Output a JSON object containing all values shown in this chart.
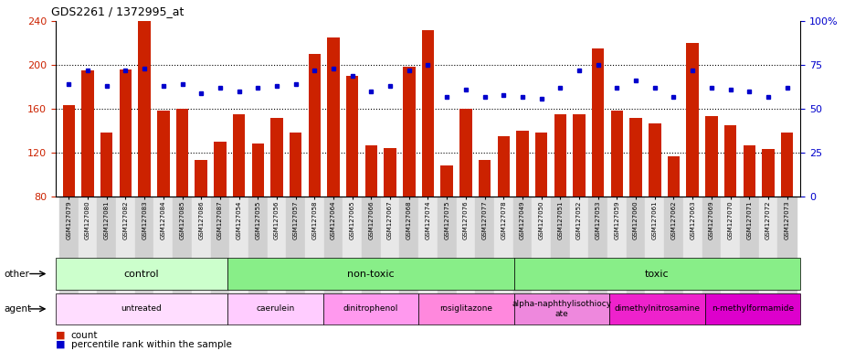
{
  "title": "GDS2261 / 1372995_at",
  "samples": [
    "GSM127079",
    "GSM127080",
    "GSM127081",
    "GSM127082",
    "GSM127083",
    "GSM127084",
    "GSM127085",
    "GSM127086",
    "GSM127087",
    "GSM127054",
    "GSM127055",
    "GSM127056",
    "GSM127057",
    "GSM127058",
    "GSM127064",
    "GSM127065",
    "GSM127066",
    "GSM127067",
    "GSM127068",
    "GSM127074",
    "GSM127075",
    "GSM127076",
    "GSM127077",
    "GSM127078",
    "GSM127049",
    "GSM127050",
    "GSM127051",
    "GSM127052",
    "GSM127053",
    "GSM127059",
    "GSM127060",
    "GSM127061",
    "GSM127062",
    "GSM127063",
    "GSM127069",
    "GSM127070",
    "GSM127071",
    "GSM127072",
    "GSM127073"
  ],
  "counts": [
    163,
    195,
    138,
    196,
    240,
    158,
    160,
    113,
    130,
    155,
    128,
    152,
    138,
    210,
    225,
    190,
    127,
    124,
    198,
    232,
    108,
    160,
    113,
    135,
    140,
    138,
    155,
    155,
    215,
    158,
    152,
    147,
    117,
    220,
    153,
    145,
    127,
    123,
    138
  ],
  "percentile": [
    64,
    72,
    63,
    72,
    73,
    63,
    64,
    59,
    62,
    60,
    62,
    63,
    64,
    72,
    73,
    69,
    60,
    63,
    72,
    75,
    57,
    61,
    57,
    58,
    57,
    56,
    62,
    72,
    75,
    62,
    66,
    62,
    57,
    72,
    62,
    61,
    60,
    57,
    62
  ],
  "bar_color": "#cc2200",
  "dot_color": "#0000cc",
  "ylim_left": [
    80,
    240
  ],
  "ylim_right": [
    0,
    100
  ],
  "yticks_left": [
    80,
    120,
    160,
    200,
    240
  ],
  "yticks_right": [
    0,
    25,
    50,
    75,
    100
  ],
  "grid_lines": [
    120,
    160,
    200
  ],
  "other_groups": [
    {
      "label": "control",
      "start": 0,
      "end": 8,
      "color": "#ccffcc"
    },
    {
      "label": "non-toxic",
      "start": 9,
      "end": 23,
      "color": "#88ee88"
    },
    {
      "label": "toxic",
      "start": 24,
      "end": 38,
      "color": "#88ee88"
    }
  ],
  "agent_groups": [
    {
      "label": "untreated",
      "start": 0,
      "end": 8,
      "color": "#ffddff"
    },
    {
      "label": "caerulein",
      "start": 9,
      "end": 13,
      "color": "#ffccff"
    },
    {
      "label": "dinitrophenol",
      "start": 14,
      "end": 18,
      "color": "#ff99ee"
    },
    {
      "label": "rosiglitazone",
      "start": 19,
      "end": 23,
      "color": "#ff88dd"
    },
    {
      "label": "alpha-naphthylisothiocy\nate",
      "start": 24,
      "end": 28,
      "color": "#ee88dd"
    },
    {
      "label": "dimethylnitrosamine",
      "start": 29,
      "end": 33,
      "color": "#ee22cc"
    },
    {
      "label": "n-methylformamide",
      "start": 34,
      "end": 38,
      "color": "#dd00cc"
    }
  ]
}
